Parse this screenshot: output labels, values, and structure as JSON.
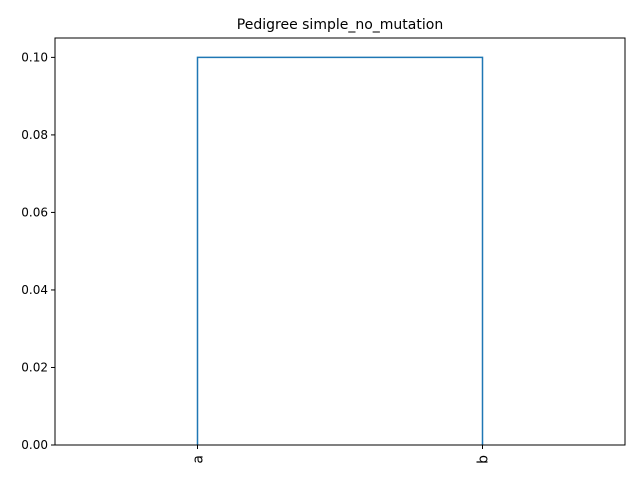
{
  "chart_data": {
    "type": "dendrogram",
    "title": "Pedigree simple_no_mutation",
    "xlabel": "",
    "ylabel": "",
    "leaves": [
      "a",
      "b"
    ],
    "merges": [
      {
        "left": "a",
        "right": "b",
        "height": 0.1
      }
    ],
    "yticks": [
      0.0,
      0.02,
      0.04,
      0.06,
      0.08,
      0.1
    ],
    "ytick_labels": [
      "0.00",
      "0.02",
      "0.04",
      "0.06",
      "0.08",
      "0.10"
    ],
    "ylim": [
      0,
      0.105
    ],
    "grid": false,
    "legend": "none",
    "line_color": "#1f77b4"
  }
}
